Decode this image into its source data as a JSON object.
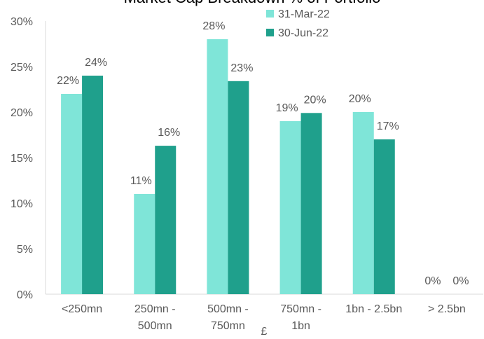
{
  "chart_data": {
    "type": "bar",
    "title": "Market Cap Breakdown % of Portfolio",
    "xlabel": "£",
    "ylabel": "",
    "categories": [
      [
        "<250mn"
      ],
      [
        "250mn -",
        "500mn"
      ],
      [
        "500mn -",
        "750mn"
      ],
      [
        "750mn -",
        "1bn"
      ],
      [
        "1bn - 2.5bn"
      ],
      [
        "> 2.5bn"
      ]
    ],
    "series": [
      {
        "name": "31-Mar-22",
        "color": "#7fe5d8",
        "values": [
          22,
          11,
          28,
          19,
          20,
          0
        ],
        "labels": [
          "22%",
          "11%",
          "28%",
          "19%",
          "20%",
          "0%"
        ]
      },
      {
        "name": "30-Jun-22",
        "color": "#1fa08c",
        "values": [
          24,
          16.3,
          23.4,
          19.9,
          17,
          0
        ],
        "labels": [
          "24%",
          "16%",
          "23%",
          "20%",
          "17%",
          "0%"
        ]
      }
    ],
    "ylim": [
      0,
      30
    ],
    "yticks": [
      0,
      5,
      10,
      15,
      20,
      25,
      30
    ],
    "ytick_labels": [
      "0%",
      "5%",
      "10%",
      "15%",
      "20%",
      "25%",
      "30%"
    ],
    "grid": false,
    "legend": "top-center"
  }
}
